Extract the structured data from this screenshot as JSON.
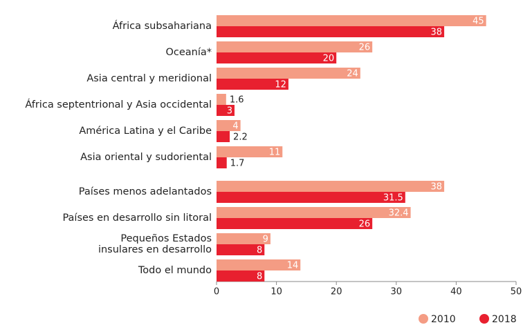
{
  "chart_data": {
    "type": "bar",
    "orientation": "horizontal",
    "categories": [
      "África subsahariana",
      "Oceanía*",
      "Asia central y meridional",
      "África septentrional y Asia occidental",
      "América Latina y el Caribe",
      "Asia oriental y sudoriental",
      "Países menos adelantados",
      "Países en desarrollo sin litoral",
      "Pequeños Estados\ninsulares en desarrollo",
      "Todo el mundo"
    ],
    "series": [
      {
        "name": "2010",
        "color": "#f49c84",
        "values": [
          45,
          26,
          24,
          1.6,
          4,
          11,
          38,
          32.4,
          9,
          14
        ]
      },
      {
        "name": "2018",
        "color": "#e8202f",
        "values": [
          38,
          20,
          12,
          3,
          2.2,
          1.7,
          31.5,
          26,
          8,
          8
        ]
      }
    ],
    "xlim": [
      0,
      50
    ],
    "xticks": [
      0,
      10,
      20,
      30,
      40,
      50
    ],
    "grid": false,
    "legend": "bottom-right"
  }
}
